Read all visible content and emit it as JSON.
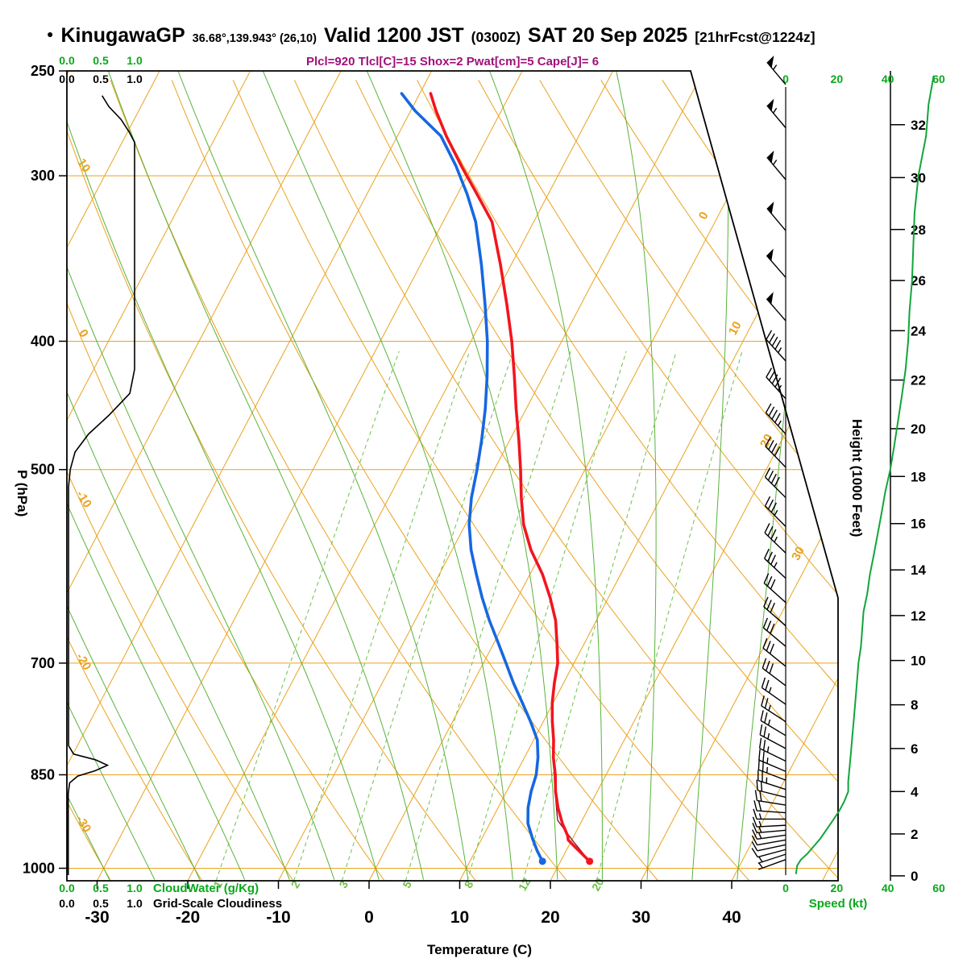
{
  "header": {
    "bullet": "●",
    "station": "KinugawaGP",
    "coords": "36.68°,139.943° (26,10)",
    "valid": "Valid 1200 JST",
    "valid_z": "(0300Z)",
    "date": "SAT 20 Sep 2025",
    "fcst": "[21hrFcst@1224z]",
    "params": "Plcl=920 Tlcl[C]=15 Shox=2 Pwat[cm]=5 Cape[J]= 6"
  },
  "axes": {
    "pressure_label": "P (hPa)",
    "pressure_ticks": [
      250,
      300,
      400,
      500,
      700,
      850,
      1000
    ],
    "temp_label": "Temperature (C)",
    "temp_ticks": [
      -30,
      -20,
      -10,
      0,
      10,
      20,
      30,
      40
    ],
    "height_label": "Height (1000 Feet)",
    "height_ticks": [
      0,
      2,
      4,
      6,
      8,
      10,
      12,
      14,
      16,
      18,
      20,
      22,
      24,
      26,
      28,
      30,
      32
    ],
    "speed_label": "Speed (kt)",
    "speed_ticks": [
      0,
      20,
      40,
      60
    ],
    "cloud_scale_ticks": [
      "0.0",
      "0.5",
      "1.0"
    ],
    "cloudwater_label": "CloudWater (g/Kg)",
    "cloudiness_label": "Grid-Scale Cloudiness"
  },
  "colors": {
    "grid_orange": "#EBA21E",
    "grid_green": "#59B23B",
    "grid_green_dashed": "#6FC04A",
    "green_text": "#0AA81C",
    "speed_green": "#12A53A",
    "temp_red": "#F2151F",
    "dew_blue": "#1767E0",
    "parcel": "#7A0E22",
    "params_text": "#A0107A",
    "black": "#000000"
  },
  "chart_data": {
    "type": "skewt-logp-sounding",
    "title": "KinugawaGP forecast sounding valid 1200 JST SAT 20 Sep 2025",
    "pressure_range_hpa": [
      250,
      1022
    ],
    "temp_axis_range_c": [
      -30,
      40
    ],
    "isotherm_step_c": 10,
    "dry_adiabat_step_c": 10,
    "moist_adiabat_step_c": 5,
    "mixing_ratio_lines_gkg": [
      1,
      2,
      3,
      5,
      8,
      12,
      20
    ],
    "isotherm_labels_c": [
      0,
      10,
      20,
      30
    ],
    "dry_adiabat_labels_c": [
      10,
      0,
      -10,
      -20,
      -30
    ],
    "temperature_profile_p_c": [
      [
        988,
        23.2
      ],
      [
        975,
        21.9
      ],
      [
        962,
        20.6
      ],
      [
        952,
        19.6
      ],
      [
        945,
        19.3
      ],
      [
        925,
        18.0
      ],
      [
        900,
        16.6
      ],
      [
        875,
        15.4
      ],
      [
        850,
        14.4
      ],
      [
        825,
        13.2
      ],
      [
        800,
        12.2
      ],
      [
        775,
        11.0
      ],
      [
        750,
        9.9
      ],
      [
        725,
        9.0
      ],
      [
        700,
        8.2
      ],
      [
        675,
        6.9
      ],
      [
        650,
        5.5
      ],
      [
        625,
        3.6
      ],
      [
        600,
        1.4
      ],
      [
        575,
        -1.3
      ],
      [
        550,
        -3.6
      ],
      [
        525,
        -5.4
      ],
      [
        500,
        -7.1
      ],
      [
        475,
        -9.0
      ],
      [
        450,
        -11.1
      ],
      [
        425,
        -13.2
      ],
      [
        400,
        -15.5
      ],
      [
        375,
        -18.2
      ],
      [
        350,
        -21.2
      ],
      [
        325,
        -24.6
      ],
      [
        310,
        -27.8
      ],
      [
        295,
        -31.2
      ],
      [
        280,
        -34.6
      ],
      [
        268,
        -37.2
      ],
      [
        260,
        -38.8
      ]
    ],
    "dewpoint_profile_p_c": [
      [
        988,
        18.0
      ],
      [
        970,
        16.8
      ],
      [
        950,
        15.6
      ],
      [
        925,
        14.2
      ],
      [
        900,
        13.3
      ],
      [
        875,
        12.7
      ],
      [
        850,
        12.3
      ],
      [
        825,
        11.5
      ],
      [
        800,
        10.4
      ],
      [
        775,
        8.6
      ],
      [
        750,
        6.6
      ],
      [
        725,
        4.5
      ],
      [
        700,
        2.5
      ],
      [
        675,
        0.4
      ],
      [
        650,
        -1.8
      ],
      [
        625,
        -3.9
      ],
      [
        600,
        -5.9
      ],
      [
        575,
        -7.9
      ],
      [
        550,
        -9.6
      ],
      [
        525,
        -10.9
      ],
      [
        500,
        -11.9
      ],
      [
        475,
        -13.1
      ],
      [
        450,
        -14.5
      ],
      [
        425,
        -16.2
      ],
      [
        400,
        -18.2
      ],
      [
        375,
        -20.6
      ],
      [
        350,
        -23.3
      ],
      [
        325,
        -26.4
      ],
      [
        310,
        -28.9
      ],
      [
        295,
        -31.8
      ],
      [
        280,
        -35.2
      ],
      [
        268,
        -39.5
      ],
      [
        260,
        -42.0
      ]
    ],
    "parcel_path_p_c": [
      [
        988,
        23.2
      ],
      [
        955,
        20.3
      ],
      [
        920,
        17.3
      ],
      [
        890,
        16.0
      ],
      [
        860,
        14.7
      ],
      [
        840,
        13.9
      ]
    ],
    "surface_dots": {
      "temp": {
        "p": 988,
        "c": 23.2
      },
      "dewpoint": {
        "p": 988,
        "c": 18.0
      }
    },
    "cloudiness_profile_p_frac": [
      [
        261,
        0.52
      ],
      [
        266,
        0.62
      ],
      [
        272,
        0.8
      ],
      [
        278,
        0.92
      ],
      [
        283,
        1.0
      ],
      [
        420,
        1.0
      ],
      [
        438,
        0.93
      ],
      [
        455,
        0.62
      ],
      [
        470,
        0.32
      ],
      [
        485,
        0.12
      ],
      [
        500,
        0.05
      ],
      [
        515,
        0.025
      ],
      [
        808,
        0.025
      ],
      [
        820,
        0.1
      ],
      [
        828,
        0.42
      ],
      [
        836,
        0.6
      ],
      [
        844,
        0.42
      ],
      [
        852,
        0.16
      ],
      [
        862,
        0.04
      ],
      [
        878,
        0.02
      ],
      [
        1012,
        0.02
      ]
    ],
    "wind_profile_p_dir_kt": [
      [
        985,
        250,
        5
      ],
      [
        976,
        252,
        6
      ],
      [
        968,
        255,
        8
      ],
      [
        960,
        258,
        10
      ],
      [
        952,
        260,
        12
      ],
      [
        944,
        262,
        13
      ],
      [
        936,
        265,
        14
      ],
      [
        928,
        267,
        15
      ],
      [
        918,
        270,
        17
      ],
      [
        908,
        274,
        19
      ],
      [
        896,
        279,
        21
      ],
      [
        884,
        284,
        22
      ],
      [
        872,
        288,
        23
      ],
      [
        858,
        291,
        24
      ],
      [
        845,
        293,
        25
      ],
      [
        830,
        296,
        25
      ],
      [
        812,
        298,
        26
      ],
      [
        794,
        301,
        26
      ],
      [
        775,
        303,
        27
      ],
      [
        752,
        305,
        27
      ],
      [
        728,
        307,
        28
      ],
      [
        704,
        309,
        28
      ],
      [
        680,
        310,
        29
      ],
      [
        656,
        311,
        30
      ],
      [
        630,
        312,
        31
      ],
      [
        604,
        313,
        33
      ],
      [
        578,
        314,
        35
      ],
      [
        552,
        315,
        37
      ],
      [
        525,
        315,
        39
      ],
      [
        498,
        316,
        41
      ],
      [
        470,
        317,
        43
      ],
      [
        442,
        318,
        45
      ],
      [
        414,
        318,
        47
      ],
      [
        386,
        319,
        48
      ],
      [
        358,
        319,
        50
      ],
      [
        330,
        320,
        51
      ],
      [
        302,
        320,
        53
      ],
      [
        276,
        320,
        55
      ],
      [
        256,
        320,
        57
      ]
    ],
    "speed_curve_p_kt": [
      [
        252,
        58
      ],
      [
        265,
        56
      ],
      [
        280,
        55
      ],
      [
        300,
        52
      ],
      [
        320,
        50.5
      ],
      [
        340,
        50
      ],
      [
        360,
        49.5
      ],
      [
        380,
        48.5
      ],
      [
        400,
        48
      ],
      [
        420,
        47
      ],
      [
        440,
        45.5
      ],
      [
        460,
        44
      ],
      [
        480,
        42.5
      ],
      [
        500,
        41
      ],
      [
        520,
        39
      ],
      [
        540,
        37.5
      ],
      [
        560,
        36
      ],
      [
        580,
        34.5
      ],
      [
        600,
        33
      ],
      [
        620,
        32
      ],
      [
        640,
        30.5
      ],
      [
        660,
        30
      ],
      [
        680,
        29.5
      ],
      [
        700,
        28.5
      ],
      [
        720,
        28
      ],
      [
        740,
        27.5
      ],
      [
        760,
        27
      ],
      [
        780,
        26.5
      ],
      [
        800,
        26
      ],
      [
        820,
        25.5
      ],
      [
        840,
        25
      ],
      [
        860,
        24.5
      ],
      [
        875,
        24.5
      ],
      [
        890,
        23
      ],
      [
        905,
        21
      ],
      [
        920,
        18.5
      ],
      [
        935,
        16
      ],
      [
        950,
        13.5
      ],
      [
        965,
        10.5
      ],
      [
        975,
        8.5
      ],
      [
        985,
        6
      ],
      [
        995,
        4.5
      ],
      [
        1010,
        4
      ]
    ]
  }
}
